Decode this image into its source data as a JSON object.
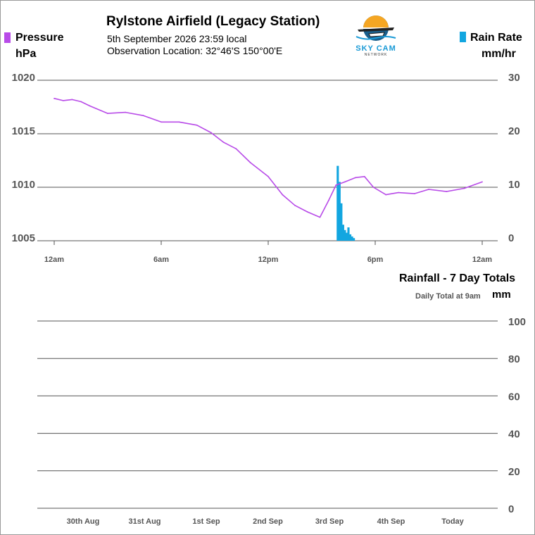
{
  "header": {
    "title": "Rylstone Airfield (Legacy Station)",
    "subtitle": "5th September 2026  23:59 local",
    "location": "Observation Location:   32°46'S 150°00'E",
    "logo_name": "SKY CAM",
    "logo_subtext": "NETWORK"
  },
  "colors": {
    "pressure": "#b84be8",
    "rain_rate": "#12a6e0",
    "gridline": "#555555",
    "axis_text": "#555555"
  },
  "chart_data": [
    {
      "type": "line",
      "title": "",
      "left_legend": "Pressure",
      "left_unit": "hPa",
      "right_legend": "Rain Rate",
      "right_unit": "mm/hr",
      "x_ticks": [
        "12am",
        "6am",
        "12pm",
        "6pm",
        "12am"
      ],
      "xlim": [
        0,
        24
      ],
      "y_left": {
        "lim": [
          1005,
          1020
        ],
        "ticks": [
          "1020",
          "1015",
          "1010",
          "1005"
        ],
        "tick_values": [
          1020,
          1015,
          1010,
          1005
        ]
      },
      "y_right": {
        "lim": [
          0,
          30
        ],
        "ticks": [
          "30",
          "20",
          "10",
          "0"
        ],
        "tick_values": [
          30,
          20,
          10,
          0
        ]
      },
      "grid": true,
      "series": [
        {
          "name": "Pressure",
          "axis": "left",
          "kind": "line",
          "x": [
            0,
            0.5,
            1,
            1.5,
            2,
            3,
            4,
            5,
            6,
            7,
            8,
            8.8,
            9.5,
            10.2,
            11,
            12,
            12.8,
            13.5,
            14.2,
            14.9,
            15.4,
            15.8,
            16.3,
            16.9,
            17.4,
            17.9,
            18.6,
            19.3,
            20.2,
            21,
            22,
            23,
            24
          ],
          "y": [
            1018.3,
            1018.1,
            1018.2,
            1018.0,
            1017.6,
            1016.9,
            1017.0,
            1016.7,
            1016.1,
            1016.1,
            1015.8,
            1015.1,
            1014.2,
            1013.6,
            1012.3,
            1011.0,
            1009.3,
            1008.3,
            1007.7,
            1007.2,
            1008.8,
            1010.2,
            1010.5,
            1010.9,
            1011.0,
            1010.0,
            1009.3,
            1009.5,
            1009.4,
            1009.8,
            1009.6,
            1009.9,
            1010.5
          ]
        },
        {
          "name": "Rain Rate",
          "axis": "right",
          "kind": "bar",
          "x": [
            15.9,
            16.0,
            16.1,
            16.2,
            16.3,
            16.4,
            16.5,
            16.6,
            16.7,
            16.8
          ],
          "y": [
            14,
            11,
            7,
            3,
            2,
            1.5,
            2.5,
            1.2,
            0.8,
            0.5
          ]
        }
      ]
    },
    {
      "type": "bar",
      "title": "Rainfall - 7 Day Totals",
      "note": "Daily Total at 9am",
      "right_unit": "mm",
      "categories": [
        "30th Aug",
        "31st Aug",
        "1st Sep",
        "2nd Sep",
        "3rd Sep",
        "4th Sep",
        "Today"
      ],
      "values": [
        0,
        0,
        0,
        0,
        0,
        0,
        0
      ],
      "ylim": [
        0,
        100
      ],
      "y_ticks": [
        "100",
        "80",
        "60",
        "40",
        "20",
        "0"
      ],
      "y_tick_values": [
        100,
        80,
        60,
        40,
        20,
        0
      ],
      "grid": true
    }
  ]
}
